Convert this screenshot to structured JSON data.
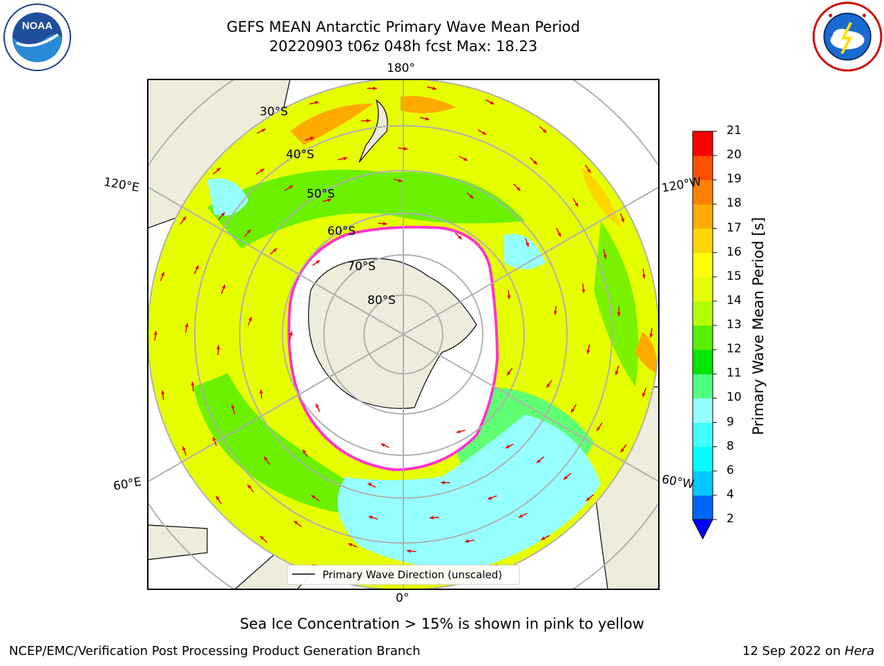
{
  "header": {
    "title_line1": "GEFS MEAN Antarctic Primary Wave Mean Period",
    "title_line2": "20220903 t06z 048h fcst   Max: 18.23"
  },
  "logos": {
    "left": "noaa-logo",
    "left_text": "NOAA",
    "left_ring_text": "NATIONAL OCEANIC AND ATMOSPHERIC ADMINISTRATION · U.S. DEPARTMENT OF COMMERCE",
    "right": "nws-logo",
    "right_ring_text": "NATIONAL WEATHER SERVICE"
  },
  "map": {
    "projection": "south-polar-stereographic",
    "lon_labels": {
      "top": "180°",
      "bottom": "0°",
      "upper_left": "120°E",
      "upper_right": "120°W",
      "lower_left": "60°E",
      "lower_right": "60°W"
    },
    "lat_labels": [
      "30°S",
      "40°S",
      "50°S",
      "60°S",
      "70°S",
      "80°S"
    ],
    "legend": "Primary Wave Direction (unscaled)",
    "arrow_color": "#e80000",
    "sea_ice_color": "#ff33cc",
    "land_color": "#eeecdc"
  },
  "colorbar": {
    "label": "Primary Wave Mean Period [s]",
    "ticks": [
      "2",
      "4",
      "6",
      "8",
      "9",
      "10",
      "11",
      "12",
      "13",
      "14",
      "15",
      "16",
      "17",
      "18",
      "19",
      "20",
      "21"
    ],
    "colors": [
      "#0064ff",
      "#00c8ff",
      "#00ffff",
      "#40ffff",
      "#96ffff",
      "#50ff80",
      "#00e600",
      "#55ee00",
      "#b4ff00",
      "#e6ff00",
      "#ffff00",
      "#ffd700",
      "#ffaa00",
      "#ff8000",
      "#ff5000",
      "#ff0000"
    ],
    "under_color": "#0000ff"
  },
  "caption": "Sea Ice Concentration > 15% is shown in pink to yellow",
  "footer": {
    "left": "NCEP/EMC/Verification Post Processing Product Generation Branch",
    "right_date": "12 Sep 2022 on ",
    "right_host": "Hera"
  }
}
